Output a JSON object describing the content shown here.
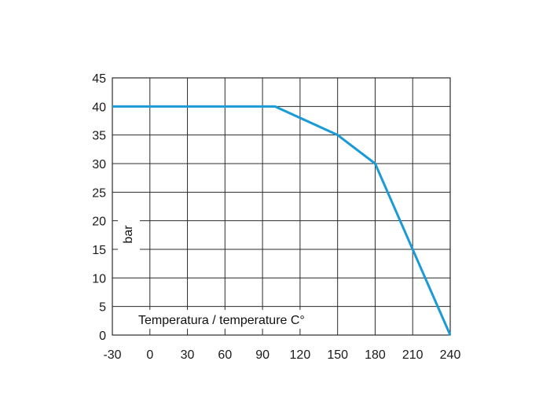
{
  "chart_data": {
    "type": "line",
    "xlabel": "Temperatura / temperature C°",
    "ylabel": "bar",
    "xlim": [
      -30,
      240
    ],
    "ylim": [
      0,
      45
    ],
    "x_ticks": [
      -30,
      0,
      30,
      60,
      90,
      120,
      150,
      180,
      210,
      240
    ],
    "y_ticks": [
      0,
      5,
      10,
      15,
      20,
      25,
      30,
      35,
      40,
      45
    ],
    "grid": true,
    "series": [
      {
        "color": "#1a9ad6",
        "points": [
          {
            "x": -30,
            "y": 40
          },
          {
            "x": 100,
            "y": 40
          },
          {
            "x": 150,
            "y": 35
          },
          {
            "x": 180,
            "y": 30
          },
          {
            "x": 240,
            "y": 0
          }
        ]
      }
    ]
  }
}
